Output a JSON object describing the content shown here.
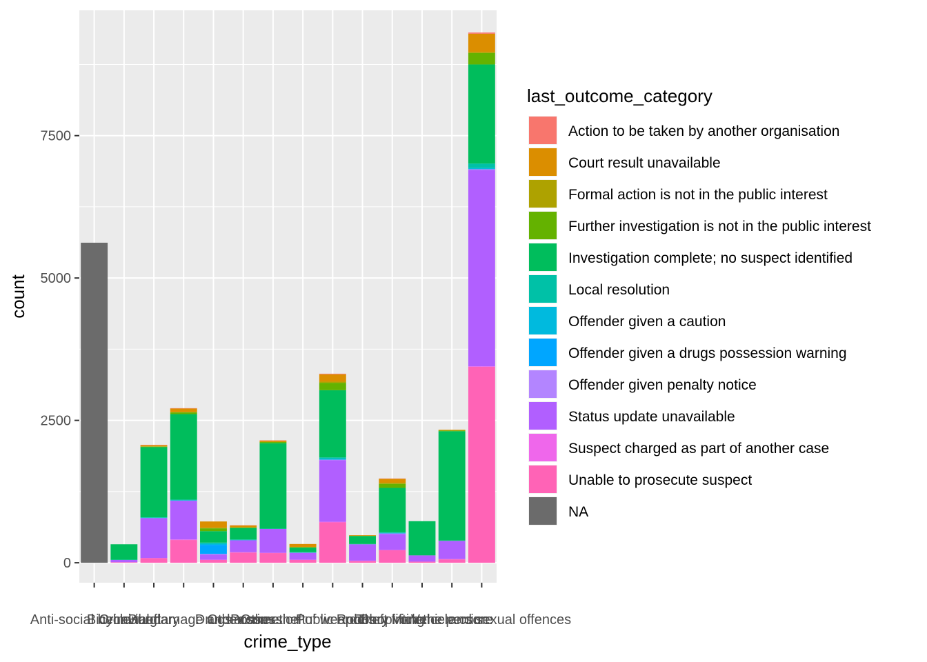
{
  "chart_data": {
    "type": "bar",
    "stacked": true,
    "xlabel": "crime_type",
    "ylabel": "count",
    "ylim": [
      -350,
      9700
    ],
    "yticks": [
      0,
      2500,
      5000,
      7500
    ],
    "ytick_labels": [
      "0",
      "2500",
      "5000",
      "7500"
    ],
    "grid": true,
    "legend_position": "right",
    "legend_title": "last_outcome_category",
    "categories": [
      "Anti-social behaviour",
      "Bicycle theft",
      "Burglary",
      "Criminal damage and arson",
      "Drugs",
      "Other crime",
      "Other theft",
      "Possession of weapons",
      "Public order",
      "Robbery",
      "Shoplifting",
      "Theft from the person",
      "Vehicle crime",
      "Violence and sexual offences"
    ],
    "series": [
      {
        "name": "Action to be taken by another organisation",
        "color": "#F8766D",
        "values": [
          0,
          0,
          5,
          5,
          0,
          3,
          5,
          0,
          10,
          0,
          5,
          0,
          0,
          20
        ]
      },
      {
        "name": "Court result unavailable",
        "color": "#DB8E00",
        "values": [
          0,
          0,
          20,
          60,
          110,
          30,
          20,
          50,
          130,
          10,
          70,
          0,
          10,
          320
        ]
      },
      {
        "name": "Formal action is not in the public interest",
        "color": "#AEA200",
        "values": [
          0,
          0,
          5,
          10,
          10,
          5,
          5,
          5,
          20,
          0,
          20,
          0,
          5,
          20
        ]
      },
      {
        "name": "Further investigation is not in the public interest",
        "color": "#64B200",
        "values": [
          0,
          0,
          10,
          30,
          50,
          10,
          20,
          10,
          130,
          5,
          70,
          0,
          10,
          200
        ]
      },
      {
        "name": "Investigation complete; no suspect identified",
        "color": "#00BD5C",
        "values": [
          0,
          270,
          1230,
          1500,
          200,
          200,
          1500,
          80,
          1180,
          140,
          780,
          600,
          1920,
          1740
        ]
      },
      {
        "name": "Local resolution",
        "color": "#00C1A7",
        "values": [
          0,
          5,
          10,
          10,
          20,
          10,
          5,
          5,
          20,
          5,
          10,
          0,
          5,
          80
        ]
      },
      {
        "name": "Offender given a caution",
        "color": "#00BADE",
        "values": [
          0,
          0,
          5,
          10,
          20,
          5,
          0,
          5,
          20,
          0,
          10,
          0,
          0,
          20
        ]
      },
      {
        "name": "Offender given a drugs possession warning",
        "color": "#00A6FF",
        "values": [
          0,
          0,
          0,
          0,
          160,
          0,
          0,
          0,
          0,
          0,
          0,
          0,
          0,
          0
        ]
      },
      {
        "name": "Offender given penalty notice",
        "color": "#B385FF",
        "values": [
          0,
          0,
          0,
          0,
          10,
          0,
          0,
          0,
          10,
          0,
          10,
          0,
          0,
          10
        ]
      },
      {
        "name": "Status update unavailable",
        "color": "#B15FFF",
        "values": [
          0,
          40,
          700,
          680,
          90,
          210,
          420,
          120,
          1080,
          290,
          280,
          110,
          320,
          3450
        ]
      },
      {
        "name": "Suspect charged as part of another case",
        "color": "#EF67EB",
        "values": [
          0,
          0,
          5,
          10,
          5,
          5,
          5,
          5,
          10,
          5,
          5,
          0,
          5,
          10
        ]
      },
      {
        "name": "Unable to prosecute suspect",
        "color": "#FF63B6",
        "values": [
          0,
          10,
          80,
          400,
          50,
          180,
          170,
          50,
          710,
          30,
          220,
          20,
          60,
          3440
        ]
      },
      {
        "name": "NA",
        "color": "#6B6B6B",
        "values": [
          5620,
          0,
          0,
          0,
          0,
          0,
          0,
          0,
          0,
          0,
          0,
          0,
          0,
          0
        ]
      }
    ]
  }
}
